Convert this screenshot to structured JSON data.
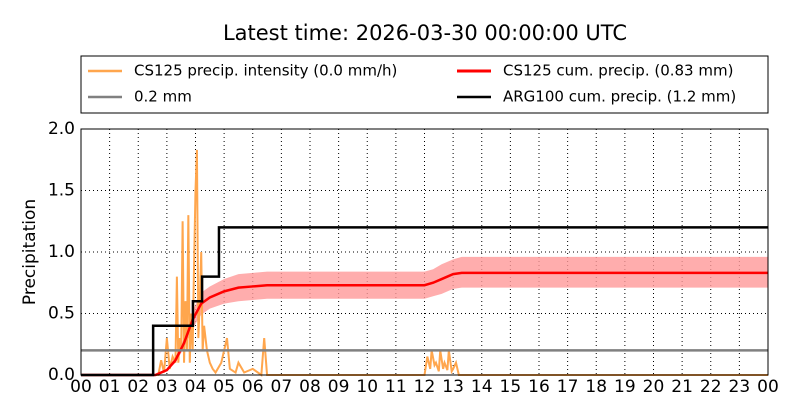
{
  "chart_data": {
    "type": "line",
    "title": "Latest time: 2026-03-30 00:00:00 UTC",
    "y_label": "Precipitation",
    "xlim": [
      0,
      24
    ],
    "ylim": [
      0,
      2
    ],
    "xticks": [
      {
        "value": 0,
        "label": "00"
      },
      {
        "value": 1,
        "label": "01"
      },
      {
        "value": 2,
        "label": "02"
      },
      {
        "value": 3,
        "label": "03"
      },
      {
        "value": 4,
        "label": "04"
      },
      {
        "value": 5,
        "label": "05"
      },
      {
        "value": 6,
        "label": "06"
      },
      {
        "value": 7,
        "label": "07"
      },
      {
        "value": 8,
        "label": "08"
      },
      {
        "value": 9,
        "label": "09"
      },
      {
        "value": 10,
        "label": "10"
      },
      {
        "value": 11,
        "label": "11"
      },
      {
        "value": 12,
        "label": "12"
      },
      {
        "value": 13,
        "label": "13"
      },
      {
        "value": 14,
        "label": "14"
      },
      {
        "value": 15,
        "label": "15"
      },
      {
        "value": 16,
        "label": "16"
      },
      {
        "value": 17,
        "label": "17"
      },
      {
        "value": 18,
        "label": "18"
      },
      {
        "value": 19,
        "label": "19"
      },
      {
        "value": 20,
        "label": "20"
      },
      {
        "value": 21,
        "label": "21"
      },
      {
        "value": 22,
        "label": "22"
      },
      {
        "value": 23,
        "label": "23"
      },
      {
        "value": 24,
        "label": "00"
      }
    ],
    "yticks": [
      {
        "value": 0,
        "label": "0.0"
      },
      0.5,
      {
        "value": 1,
        "label": "1.0"
      },
      1.5,
      {
        "value": 2,
        "label": "2.0"
      }
    ],
    "grid": true,
    "series": [
      {
        "name": "CS125 precip. intensity (0.0 mm/h)",
        "color": "#ffa64d",
        "x": [
          0,
          2.7,
          2.8,
          2.9,
          3.0,
          3.1,
          3.2,
          3.3,
          3.35,
          3.4,
          3.45,
          3.5,
          3.55,
          3.6,
          3.65,
          3.7,
          3.75,
          3.8,
          3.85,
          3.9,
          3.95,
          4.0,
          4.05,
          4.1,
          4.15,
          4.2,
          4.25,
          4.3,
          4.4,
          4.5,
          4.6,
          4.7,
          4.9,
          5.0,
          5.1,
          5.2,
          5.4,
          5.5,
          5.7,
          6.0,
          6.3,
          6.4,
          6.5,
          12.0,
          12.1,
          12.2,
          12.25,
          12.35,
          12.4,
          12.5,
          12.55,
          12.65,
          12.7,
          12.8,
          12.85,
          12.95,
          13.0,
          13.1,
          13.2,
          24
        ],
        "values": [
          0,
          0,
          0.12,
          0.02,
          0.3,
          0.05,
          0.15,
          0.1,
          0.8,
          0.1,
          0.3,
          0.2,
          1.25,
          0.1,
          0.6,
          0.2,
          1.3,
          0.1,
          0.5,
          0.2,
          0.9,
          1.5,
          1.83,
          0.3,
          0.6,
          1.0,
          0.2,
          0.4,
          0.2,
          0.1,
          0.05,
          0.02,
          0.1,
          0.2,
          0.3,
          0.05,
          0.02,
          0.1,
          0.02,
          0.05,
          0,
          0.3,
          0,
          0,
          0.15,
          0.05,
          0.2,
          0.08,
          0.1,
          0.03,
          0.2,
          0.05,
          0.1,
          0.04,
          0.2,
          0.03,
          0.05,
          0.1,
          0,
          0
        ]
      },
      {
        "name": "CS125 cum. precip. (0.83 mm)",
        "color": "#ff0000",
        "band_color": "#ff9999",
        "x": [
          0,
          2.6,
          3.0,
          3.3,
          3.6,
          3.9,
          4.2,
          4.5,
          5.0,
          5.5,
          6.0,
          6.5,
          12.0,
          12.3,
          12.6,
          13.0,
          13.3,
          24
        ],
        "values": [
          0,
          0,
          0.04,
          0.12,
          0.26,
          0.45,
          0.58,
          0.63,
          0.68,
          0.71,
          0.72,
          0.73,
          0.73,
          0.75,
          0.78,
          0.82,
          0.83,
          0.83
        ],
        "lower": [
          0,
          0,
          0.03,
          0.1,
          0.22,
          0.38,
          0.49,
          0.54,
          0.58,
          0.6,
          0.61,
          0.62,
          0.62,
          0.64,
          0.66,
          0.7,
          0.71,
          0.71
        ],
        "upper": [
          0,
          0,
          0.05,
          0.14,
          0.3,
          0.52,
          0.67,
          0.72,
          0.78,
          0.82,
          0.83,
          0.84,
          0.84,
          0.86,
          0.9,
          0.94,
          0.96,
          0.96
        ]
      },
      {
        "name": "0.2 mm",
        "color": "#808080",
        "x": [
          0,
          24
        ],
        "values": [
          0.2,
          0.2
        ]
      },
      {
        "name": "ARG100 cum. precip. (1.2 mm)",
        "color": "#000000",
        "x": [
          0,
          2.52,
          2.52,
          3.91,
          3.91,
          4.23,
          4.23,
          4.82,
          4.82,
          24
        ],
        "values": [
          0,
          0,
          0.4,
          0.4,
          0.6,
          0.6,
          0.8,
          0.8,
          1.2,
          1.2
        ]
      }
    ]
  }
}
